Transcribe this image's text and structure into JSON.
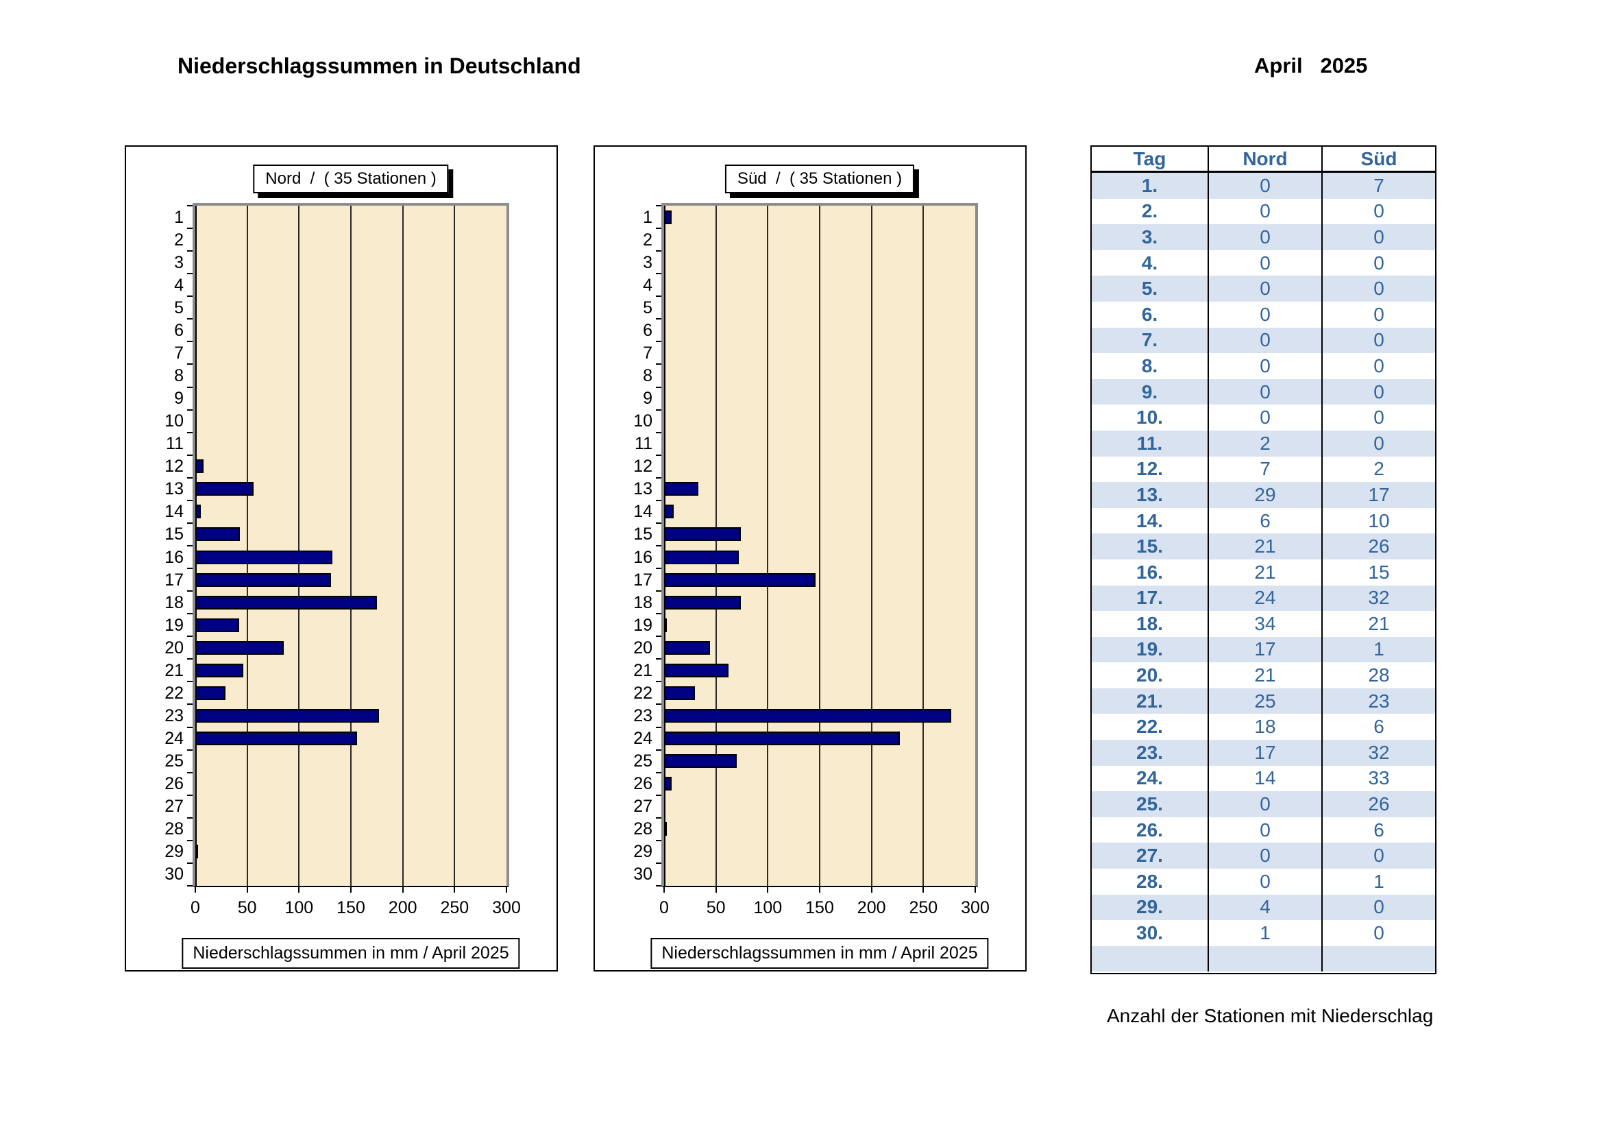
{
  "page": {
    "title": "Niederschlagssummen in Deutschland",
    "period": "April   2025"
  },
  "chart_data": [
    {
      "type": "bar",
      "orientation": "horizontal",
      "title": "Nord  /  ( 35 Stationen )",
      "categories": [
        1,
        2,
        3,
        4,
        5,
        6,
        7,
        8,
        9,
        10,
        11,
        12,
        13,
        14,
        15,
        16,
        17,
        18,
        19,
        20,
        21,
        22,
        23,
        24,
        25,
        26,
        27,
        28,
        29,
        30
      ],
      "values": [
        0,
        0,
        0,
        0,
        0,
        0,
        0,
        0,
        0,
        0,
        0,
        8,
        56,
        5,
        43,
        132,
        131,
        175,
        42,
        85,
        46,
        29,
        177,
        156,
        0,
        0,
        0,
        0,
        2,
        0
      ],
      "xlabel": "Niederschlagssummen in mm / April 2025",
      "ylabel": "",
      "xlim": [
        0,
        300
      ],
      "xticks": [
        0,
        50,
        100,
        150,
        200,
        250,
        300
      ],
      "grid": true,
      "legend": "none"
    },
    {
      "type": "bar",
      "orientation": "horizontal",
      "title": "Süd  /  ( 35 Stationen )",
      "categories": [
        1,
        2,
        3,
        4,
        5,
        6,
        7,
        8,
        9,
        10,
        11,
        12,
        13,
        14,
        15,
        16,
        17,
        18,
        19,
        20,
        21,
        22,
        23,
        24,
        25,
        26,
        27,
        28,
        29,
        30
      ],
      "values": [
        7,
        0,
        0,
        0,
        0,
        0,
        0,
        0,
        0,
        0,
        0,
        0,
        33,
        9,
        74,
        72,
        146,
        74,
        2,
        44,
        62,
        30,
        277,
        227,
        70,
        7,
        0,
        2,
        0,
        0
      ],
      "xlabel": "Niederschlagssummen in mm / April 2025",
      "ylabel": "",
      "xlim": [
        0,
        300
      ],
      "xticks": [
        0,
        50,
        100,
        150,
        200,
        250,
        300
      ],
      "grid": true,
      "legend": "none"
    },
    {
      "type": "table",
      "title": "Anzahl der Stationen mit Niederschlag",
      "columns": [
        "Tag",
        "Nord",
        "Süd"
      ],
      "rows": [
        [
          "1.",
          0,
          7
        ],
        [
          "2.",
          0,
          0
        ],
        [
          "3.",
          0,
          0
        ],
        [
          "4.",
          0,
          0
        ],
        [
          "5.",
          0,
          0
        ],
        [
          "6.",
          0,
          0
        ],
        [
          "7.",
          0,
          0
        ],
        [
          "8.",
          0,
          0
        ],
        [
          "9.",
          0,
          0
        ],
        [
          "10.",
          0,
          0
        ],
        [
          "11.",
          2,
          0
        ],
        [
          "12.",
          7,
          2
        ],
        [
          "13.",
          29,
          17
        ],
        [
          "14.",
          6,
          10
        ],
        [
          "15.",
          21,
          26
        ],
        [
          "16.",
          21,
          15
        ],
        [
          "17.",
          24,
          32
        ],
        [
          "18.",
          34,
          21
        ],
        [
          "19.",
          17,
          1
        ],
        [
          "20.",
          21,
          28
        ],
        [
          "21.",
          25,
          23
        ],
        [
          "22.",
          18,
          6
        ],
        [
          "23.",
          17,
          32
        ],
        [
          "24.",
          14,
          33
        ],
        [
          "25.",
          0,
          26
        ],
        [
          "26.",
          0,
          6
        ],
        [
          "27.",
          0,
          0
        ],
        [
          "28.",
          0,
          1
        ],
        [
          "29.",
          4,
          0
        ],
        [
          "30.",
          1,
          0
        ]
      ]
    }
  ],
  "table": {
    "headers": [
      "Tag",
      "Nord",
      "Süd"
    ],
    "caption": "Anzahl der Stationen mit Niederschlag"
  },
  "colors": {
    "bar_fill": "#000082",
    "bar_border": "#000000",
    "plot_background": "#F9ECCE",
    "plot_frame_gray": "#8C8C8C",
    "table_text_blue": "#31659C",
    "table_row_shade": "#D9E2F1"
  }
}
